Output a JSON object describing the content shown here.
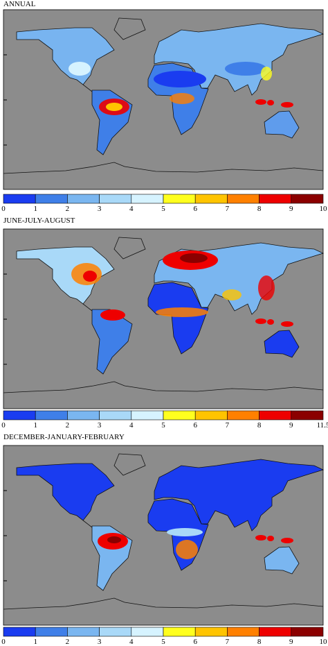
{
  "panels": [
    {
      "title": "ANNUAL",
      "colorbar": {
        "ticks": [
          0,
          1,
          2,
          3,
          4,
          5,
          6,
          7,
          8,
          9,
          10
        ],
        "colors": [
          "#1a3cf0",
          "#3f7fe8",
          "#7ab6f0",
          "#a9d9f8",
          "#d6f3ff",
          "#ffff1e",
          "#ffc400",
          "#ff8000",
          "#ee0000",
          "#8b0000"
        ]
      }
    },
    {
      "title": "JUNE-JULY-AUGUST",
      "colorbar": {
        "ticks": [
          0,
          1,
          2,
          3,
          4,
          5,
          6,
          7,
          8,
          9,
          11.5
        ],
        "colors": [
          "#1a3cf0",
          "#3f7fe8",
          "#7ab6f0",
          "#a9d9f8",
          "#d6f3ff",
          "#ffff1e",
          "#ffc400",
          "#ff8000",
          "#ee0000",
          "#8b0000"
        ]
      }
    },
    {
      "title": "DECEMBER-JANUARY-FEBRUARY",
      "colorbar": {
        "ticks": [
          0,
          1,
          2,
          3,
          4,
          5,
          6,
          7,
          8,
          9,
          10
        ],
        "colors": [
          "#1a3cf0",
          "#3f7fe8",
          "#7ab6f0",
          "#a9d9f8",
          "#d6f3ff",
          "#ffff1e",
          "#ffc400",
          "#ff8000",
          "#ee0000",
          "#8b0000"
        ]
      }
    }
  ]
}
